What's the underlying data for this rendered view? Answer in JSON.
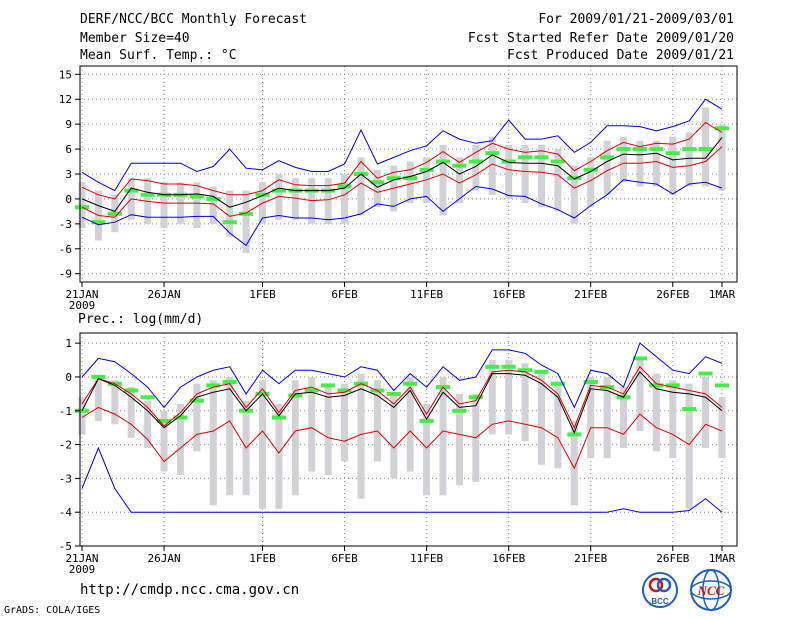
{
  "header": {
    "title_line1": "DERF/NCC/BCC Monthly Forecast",
    "title_line2": "Member Size=40",
    "title_line3": "Mean Surf. Temp.: °C",
    "right_line1": "For 2009/01/21-2009/03/01",
    "right_line2": "Fcst Started Refer Date 2009/01/20",
    "right_line3": "Fcst Produced Date 2009/01/21"
  },
  "footer": {
    "url": "http://cmdp.ncc.cma.gov.cn",
    "grads": "GrADS: COLA/IGES",
    "logo_bcc": "BCC",
    "logo_ncc": "NCC"
  },
  "colors": {
    "envelope": "#0000e0",
    "quartile": "#e00000",
    "median": "#000000",
    "box": "#d2d2d6",
    "mark": "#44ee44"
  },
  "chart_data": [
    {
      "type": "box",
      "title": "Mean Surf. Temp.: °C",
      "ylim": [
        -10,
        16
      ],
      "yticks": [
        15,
        12,
        9,
        6,
        3,
        0,
        -3,
        -6,
        -9
      ],
      "x_day_range": [
        0,
        39
      ],
      "xticks": [
        {
          "day": 0,
          "label": "21JAN",
          "sub": "2009"
        },
        {
          "day": 5,
          "label": "26JAN"
        },
        {
          "day": 11,
          "label": "1FEB"
        },
        {
          "day": 16,
          "label": "6FEB"
        },
        {
          "day": 21,
          "label": "11FEB"
        },
        {
          "day": 26,
          "label": "16FEB"
        },
        {
          "day": 31,
          "label": "21FEB"
        },
        {
          "day": 36,
          "label": "26FEB"
        },
        {
          "day": 39,
          "label": "1MAR"
        }
      ],
      "series": {
        "max": [
          3.2,
          2.0,
          1.0,
          4.3,
          4.3,
          4.3,
          4.3,
          3.3,
          3.9,
          6.0,
          3.7,
          3.5,
          4.6,
          3.8,
          3.3,
          3.3,
          4.2,
          8.3,
          4.2,
          5.0,
          5.8,
          6.4,
          8.2,
          7.2,
          6.7,
          7.0,
          9.5,
          7.2,
          7.2,
          7.6,
          5.6,
          6.8,
          8.8,
          8.8,
          8.7,
          8.2,
          8.7,
          9.4,
          12.0,
          10.8
        ],
        "q3": [
          1.4,
          0.5,
          0.0,
          2.4,
          2.2,
          1.8,
          1.8,
          1.6,
          1.0,
          0.5,
          0.5,
          1.0,
          2.3,
          1.7,
          1.6,
          1.6,
          1.9,
          4.5,
          2.5,
          3.2,
          3.5,
          4.4,
          5.7,
          4.4,
          5.6,
          6.7,
          6.0,
          5.6,
          5.8,
          5.4,
          3.4,
          4.5,
          5.8,
          6.8,
          6.3,
          6.7,
          6.6,
          7.2,
          9.2,
          8.0
        ],
        "median": [
          0.0,
          -0.8,
          -1.5,
          1.3,
          0.8,
          0.5,
          0.5,
          0.6,
          0.3,
          -1.0,
          -0.4,
          0.4,
          1.3,
          1.0,
          1.0,
          1.0,
          1.3,
          3.0,
          1.4,
          2.3,
          2.7,
          3.3,
          4.4,
          3.0,
          3.9,
          5.3,
          4.4,
          4.3,
          4.3,
          4.0,
          2.4,
          3.3,
          4.5,
          5.4,
          5.3,
          5.5,
          4.7,
          4.9,
          4.9,
          7.4
        ],
        "q1": [
          -1.0,
          -2.0,
          -2.2,
          0.0,
          -0.3,
          -0.5,
          -0.5,
          -0.5,
          -0.6,
          -2.1,
          -1.7,
          -0.5,
          0.3,
          0.1,
          -0.2,
          -0.1,
          0.5,
          1.9,
          0.8,
          1.3,
          1.8,
          2.3,
          3.0,
          1.9,
          2.9,
          4.2,
          3.5,
          3.3,
          3.2,
          2.9,
          1.3,
          2.2,
          3.4,
          4.3,
          4.3,
          4.5,
          3.8,
          4.0,
          4.5,
          6.3
        ],
        "min": [
          -2.2,
          -3.1,
          -2.8,
          -1.9,
          -2.2,
          -2.2,
          -2.2,
          -2.1,
          -2.1,
          -4.1,
          -5.6,
          -2.3,
          -2.0,
          -2.3,
          -2.3,
          -2.5,
          -2.3,
          -1.8,
          -0.6,
          -0.9,
          0.0,
          0.3,
          -1.5,
          0.0,
          1.5,
          1.2,
          0.4,
          0.3,
          -0.6,
          -1.3,
          -2.3,
          -0.8,
          0.5,
          2.3,
          2.0,
          1.8,
          0.6,
          1.8,
          2.0,
          1.3
        ],
        "box_top": [
          2.0,
          1.0,
          0.5,
          2.5,
          2.5,
          2.0,
          2.0,
          2.0,
          1.5,
          1.0,
          1.0,
          2.0,
          3.0,
          2.5,
          2.5,
          2.5,
          3.0,
          5.0,
          3.5,
          4.0,
          4.5,
          5.0,
          6.5,
          5.0,
          6.5,
          7.5,
          6.5,
          6.5,
          6.5,
          6.0,
          4.0,
          5.0,
          7.0,
          7.5,
          7.0,
          7.0,
          7.5,
          8.0,
          11.0,
          9.0
        ],
        "box_bottom": [
          -3.5,
          -5.0,
          -4.0,
          -2.5,
          -3.0,
          -3.5,
          -3.0,
          -3.5,
          -3.0,
          -4.5,
          -6.5,
          -3.0,
          -2.5,
          -2.5,
          -3.0,
          -3.0,
          -3.0,
          -2.0,
          -1.0,
          -1.5,
          -0.5,
          -0.5,
          -2.0,
          -0.5,
          1.0,
          0.5,
          0.0,
          -0.5,
          -1.0,
          -1.5,
          -3.0,
          -1.0,
          0.5,
          2.0,
          1.5,
          1.5,
          0.5,
          1.5,
          1.5,
          1.0
        ],
        "mark": [
          -1.0,
          -2.8,
          -1.8,
          1.0,
          0.5,
          0.5,
          0.5,
          0.3,
          0.0,
          -2.8,
          -1.8,
          0.5,
          1.0,
          1.0,
          1.0,
          1.0,
          1.5,
          3.0,
          2.0,
          2.5,
          2.5,
          3.5,
          4.5,
          4.0,
          4.5,
          5.5,
          4.5,
          5.0,
          5.0,
          4.5,
          2.5,
          3.5,
          5.0,
          6.0,
          6.0,
          6.0,
          5.5,
          6.0,
          6.0,
          8.5
        ]
      }
    },
    {
      "type": "box",
      "title": "Prec.: log(mm/d)",
      "ylim": [
        -5,
        1.3
      ],
      "yticks": [
        1,
        0,
        -1,
        -2,
        -3,
        -4,
        -5
      ],
      "x_day_range": [
        0,
        39
      ],
      "xticks": [
        {
          "day": 0,
          "label": "21JAN",
          "sub": "2009"
        },
        {
          "day": 5,
          "label": "26JAN"
        },
        {
          "day": 11,
          "label": "1FEB"
        },
        {
          "day": 16,
          "label": "6FEB"
        },
        {
          "day": 21,
          "label": "11FEB"
        },
        {
          "day": 26,
          "label": "16FEB"
        },
        {
          "day": 31,
          "label": "21FEB"
        },
        {
          "day": 36,
          "label": "26FEB"
        },
        {
          "day": 39,
          "label": "1MAR"
        }
      ],
      "series": {
        "max": [
          0.0,
          0.55,
          0.45,
          0.1,
          -0.3,
          -0.9,
          -0.3,
          0.0,
          0.2,
          0.3,
          -0.5,
          0.2,
          -0.2,
          0.2,
          0.2,
          0.1,
          0.0,
          0.3,
          0.2,
          -0.4,
          0.1,
          -0.3,
          0.3,
          -0.1,
          0.0,
          0.8,
          0.8,
          0.7,
          0.35,
          0.1,
          -0.9,
          0.2,
          0.1,
          -0.3,
          1.0,
          0.6,
          0.2,
          0.1,
          0.6,
          0.4
        ],
        "q3": [
          -0.8,
          -0.05,
          -0.2,
          -0.5,
          -0.9,
          -1.45,
          -1.05,
          -0.5,
          -0.3,
          -0.2,
          -0.9,
          -0.35,
          -1.05,
          -0.4,
          -0.3,
          -0.5,
          -0.45,
          -0.2,
          -0.4,
          -0.8,
          -0.3,
          -1.1,
          -0.3,
          -0.8,
          -0.7,
          0.15,
          0.2,
          0.15,
          -0.1,
          -0.5,
          -1.5,
          -0.25,
          -0.3,
          -0.5,
          0.3,
          -0.2,
          -0.3,
          -0.4,
          -0.5,
          -0.9
        ],
        "median": [
          -1.0,
          -0.05,
          -0.25,
          -0.6,
          -1.0,
          -1.5,
          -1.15,
          -0.6,
          -0.45,
          -0.35,
          -1.0,
          -0.5,
          -1.15,
          -0.5,
          -0.45,
          -0.6,
          -0.55,
          -0.35,
          -0.55,
          -0.9,
          -0.4,
          -1.25,
          -0.45,
          -0.9,
          -0.85,
          0.1,
          0.1,
          0.05,
          -0.2,
          -0.6,
          -1.65,
          -0.35,
          -0.4,
          -0.6,
          0.15,
          -0.35,
          -0.45,
          -0.5,
          -0.6,
          -1.0
        ],
        "q1": [
          -1.2,
          -0.9,
          -1.1,
          -1.4,
          -1.85,
          -2.5,
          -2.1,
          -1.7,
          -1.6,
          -1.3,
          -2.1,
          -1.6,
          -2.25,
          -1.6,
          -1.5,
          -1.8,
          -1.9,
          -1.7,
          -1.6,
          -2.1,
          -1.6,
          -2.1,
          -1.6,
          -1.7,
          -1.8,
          -1.4,
          -1.3,
          -1.4,
          -1.5,
          -1.8,
          -2.7,
          -1.5,
          -1.5,
          -1.7,
          -1.1,
          -1.5,
          -1.7,
          -2.0,
          -1.4,
          -1.6
        ],
        "min": [
          -3.3,
          -2.1,
          -3.3,
          -4.0,
          -4.0,
          -4.0,
          -4.0,
          -4.0,
          -4.0,
          -4.0,
          -4.0,
          -4.0,
          -4.0,
          -4.0,
          -4.0,
          -4.0,
          -4.0,
          -4.0,
          -4.0,
          -4.0,
          -4.0,
          -4.0,
          -4.0,
          -4.0,
          -4.0,
          -4.0,
          -4.0,
          -4.0,
          -4.0,
          -4.0,
          -4.0,
          -4.0,
          -4.0,
          -3.9,
          -4.0,
          -4.0,
          -4.0,
          -3.95,
          -3.6,
          -4.0
        ],
        "box_top": [
          -0.6,
          0.0,
          -0.1,
          -0.3,
          -0.7,
          -1.0,
          -0.8,
          -0.2,
          -0.1,
          0.0,
          -0.7,
          -0.1,
          -0.8,
          -0.1,
          0.0,
          -0.2,
          -0.2,
          0.1,
          -0.1,
          -0.5,
          0.0,
          -0.8,
          0.0,
          -0.5,
          -0.5,
          0.5,
          0.5,
          0.4,
          0.1,
          -0.2,
          -1.3,
          0.0,
          0.0,
          -0.3,
          0.5,
          0.1,
          -0.1,
          -0.2,
          0.0,
          -0.6
        ],
        "box_bottom": [
          -1.7,
          -1.3,
          -1.4,
          -1.8,
          -2.1,
          -2.8,
          -2.9,
          -2.2,
          -3.8,
          -3.5,
          -3.5,
          -3.9,
          -3.9,
          -3.5,
          -2.8,
          -2.9,
          -2.5,
          -3.6,
          -2.5,
          -3.0,
          -2.8,
          -3.5,
          -3.5,
          -3.2,
          -3.1,
          -1.7,
          -1.7,
          -1.9,
          -2.6,
          -2.7,
          -3.8,
          -2.4,
          -2.4,
          -2.1,
          -1.6,
          -2.2,
          -2.4,
          -3.9,
          -2.1,
          -2.4
        ],
        "mark": [
          -1.0,
          0.0,
          -0.2,
          -0.4,
          -0.6,
          -1.3,
          -1.2,
          -0.7,
          -0.25,
          -0.15,
          -1.0,
          -0.5,
          -1.2,
          -0.55,
          -0.4,
          -0.25,
          -0.4,
          -0.2,
          -0.4,
          -0.5,
          -0.2,
          -1.3,
          -0.3,
          -1.0,
          -0.6,
          0.3,
          0.3,
          0.2,
          0.15,
          -0.2,
          -1.7,
          -0.15,
          -0.3,
          -0.6,
          0.55,
          -0.25,
          -0.25,
          -0.95,
          0.1,
          -0.25
        ]
      }
    }
  ]
}
